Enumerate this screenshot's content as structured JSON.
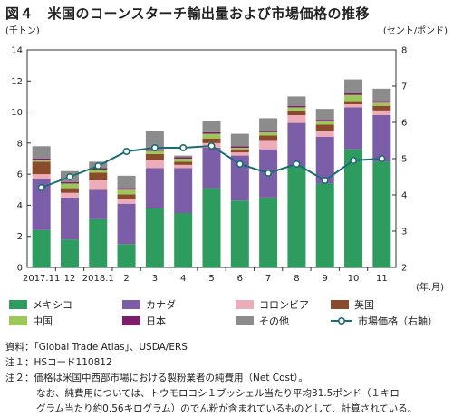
{
  "chart_data": {
    "type": "bar",
    "title": "図４　米国のコーンスターチ輸出量および市場価格の推移",
    "y_left_label": "(千トン)",
    "y_right_label": "(セント/ポンド)",
    "x_unit_label": "(年.月)",
    "categories": [
      "2017.11",
      "12",
      "2018.1",
      "2",
      "3",
      "4",
      "5",
      "6",
      "7",
      "8",
      "9",
      "10",
      "11"
    ],
    "ylim_left": [
      0,
      14
    ],
    "yticks_left": [
      0,
      2,
      4,
      6,
      8,
      10,
      12,
      14
    ],
    "ylim_right": [
      2,
      8
    ],
    "yticks_right": [
      2,
      3,
      4,
      5,
      6,
      7,
      8
    ],
    "stacked": true,
    "series": [
      {
        "name": "メキシコ",
        "color": "#2e9b5f",
        "values": [
          2.4,
          1.8,
          3.1,
          1.5,
          3.8,
          3.5,
          5.1,
          4.3,
          4.5,
          6.5,
          5.4,
          7.6,
          6.8
        ]
      },
      {
        "name": "カナダ",
        "color": "#7b5da8",
        "values": [
          3.3,
          2.7,
          1.9,
          2.6,
          2.6,
          2.9,
          2.6,
          2.9,
          3.1,
          2.8,
          3.0,
          2.7,
          3.0
        ]
      },
      {
        "name": "コロンビア",
        "color": "#eeabb8",
        "values": [
          0.3,
          0.3,
          0.6,
          0.3,
          0.5,
          0.2,
          0.3,
          0.2,
          0.6,
          0.5,
          0.4,
          0.2,
          0.3
        ]
      },
      {
        "name": "英国",
        "color": "#8a4a2c",
        "values": [
          0.8,
          0.3,
          0.5,
          0.3,
          0.4,
          0.2,
          0.3,
          0.2,
          0.3,
          0.3,
          0.4,
          0.2,
          0.3
        ]
      },
      {
        "name": "中国",
        "color": "#9cc75b",
        "values": [
          0.1,
          0.3,
          0.2,
          0.3,
          0.2,
          0.2,
          0.3,
          0.1,
          0.2,
          0.2,
          0.2,
          0.4,
          0.2
        ]
      },
      {
        "name": "日本",
        "color": "#7e1e6a",
        "values": [
          0.1,
          0.1,
          0.1,
          0.1,
          0.1,
          0.1,
          0.1,
          0.1,
          0.1,
          0.1,
          0.1,
          0.1,
          0.1
        ]
      },
      {
        "name": "その他",
        "color": "#8c8c8c",
        "values": [
          0.8,
          0.7,
          0.4,
          0.8,
          1.2,
          0.1,
          0.7,
          0.8,
          0.8,
          0.6,
          0.7,
          0.9,
          0.8
        ]
      }
    ],
    "line_series": {
      "name": "市場価格（右軸）",
      "color": "#1c6c74",
      "axis": "right",
      "values": [
        4.2,
        4.5,
        4.8,
        5.2,
        5.3,
        5.3,
        5.35,
        4.85,
        4.6,
        4.85,
        4.4,
        4.95,
        5.0
      ]
    },
    "legend": {
      "placement": "bottom",
      "columns": 4
    },
    "grid": false
  },
  "notes": [
    "資料：「Global Trade Atlas」、USDA/ERS",
    "注１：HSコード110812",
    "注２：価格は米国中西部市場における製粉業者の純費用（Net Cost）。",
    "なお、純費用については、トウモロコシ１ブッシェル当たり平均31.5ポンド（１キロ",
    "グラム当たり約0.56キログラム）のでん粉が含まれているものとして、計算されている。"
  ]
}
